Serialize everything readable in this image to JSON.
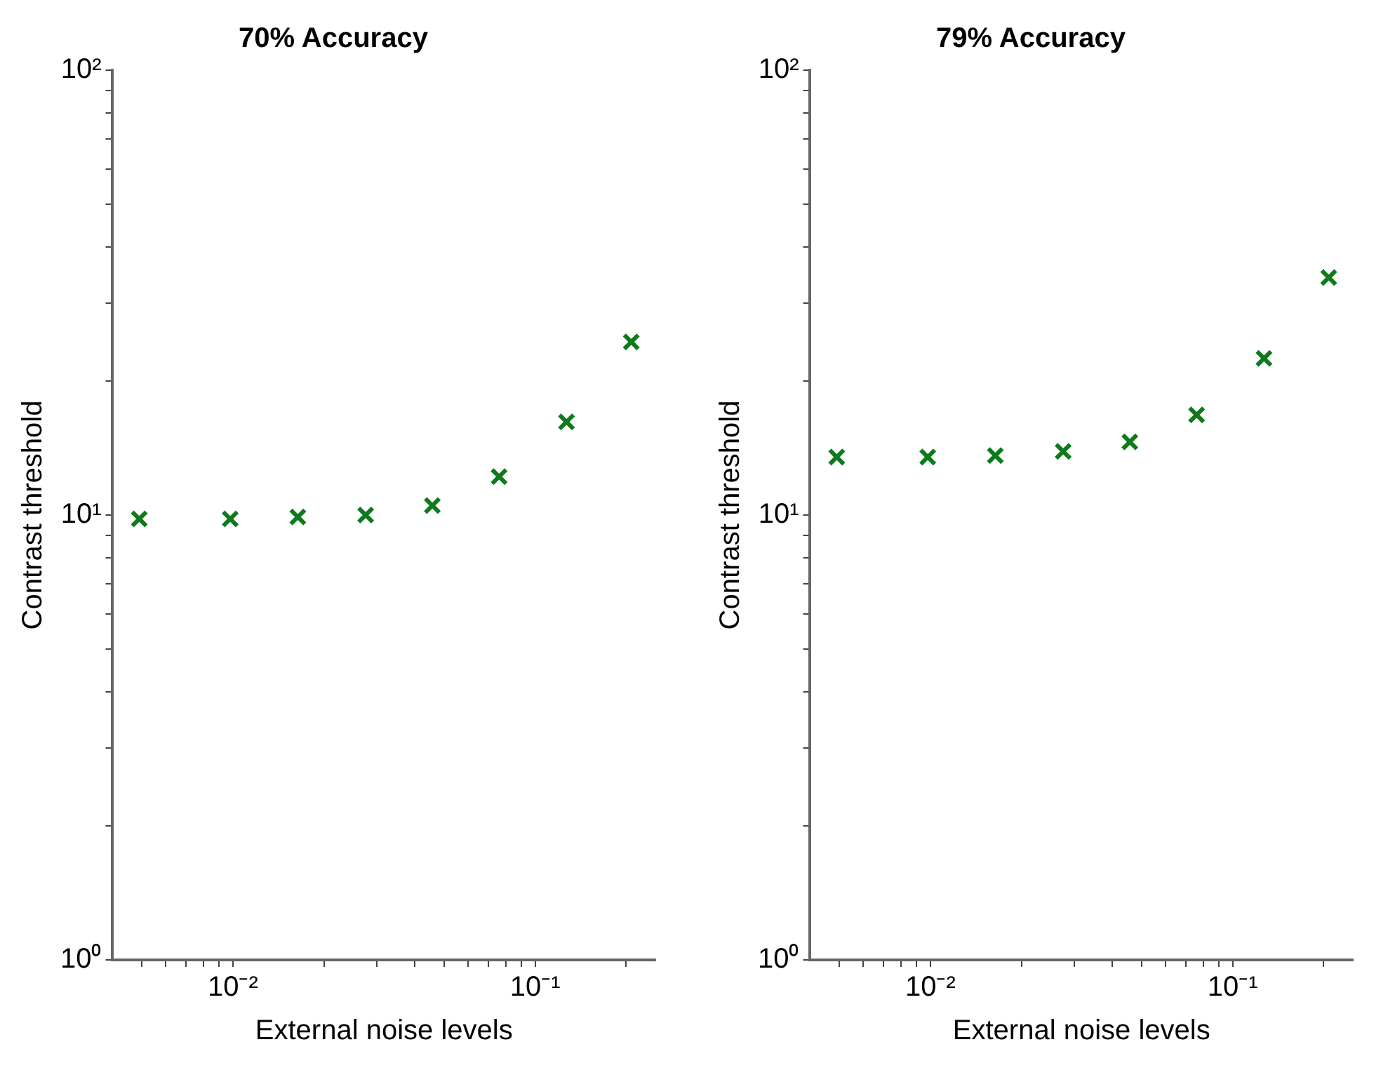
{
  "chart_data": [
    {
      "type": "scatter",
      "title": "70% Accuracy",
      "xlabel": "External noise levels",
      "ylabel": "Contrast threshold",
      "log": "xy",
      "marker": "cross",
      "x": [
        0.0049,
        0.0098,
        0.0164,
        0.0275,
        0.0457,
        0.076,
        0.127,
        0.208
      ],
      "series": [
        {
          "color": "#0f7a1c",
          "values": [
            9.8,
            9.8,
            9.9,
            10,
            10.5,
            12.2,
            16.2,
            24.5
          ]
        }
      ],
      "xlim": [
        0.004,
        0.25
      ],
      "ylim": [
        1,
        100
      ],
      "xticks": [
        {
          "value": 0.005,
          "label": null
        },
        {
          "value": 0.006,
          "label": null
        },
        {
          "value": 0.007,
          "label": null
        },
        {
          "value": 0.008,
          "label": null
        },
        {
          "value": 0.009,
          "label": null
        },
        {
          "value": 0.01,
          "label": "10⁻²"
        },
        {
          "value": 0.02,
          "label": null
        },
        {
          "value": 0.03,
          "label": null
        },
        {
          "value": 0.04,
          "label": null
        },
        {
          "value": 0.05,
          "label": null
        },
        {
          "value": 0.06,
          "label": null
        },
        {
          "value": 0.07,
          "label": null
        },
        {
          "value": 0.08,
          "label": null
        },
        {
          "value": 0.09,
          "label": null
        },
        {
          "value": 0.1,
          "label": "10⁻¹"
        },
        {
          "value": 0.2,
          "label": null
        }
      ],
      "yticks": [
        {
          "value": 1,
          "label": "10⁰"
        },
        {
          "value": 2,
          "label": null
        },
        {
          "value": 3,
          "label": null
        },
        {
          "value": 4,
          "label": null
        },
        {
          "value": 5,
          "label": null
        },
        {
          "value": 6,
          "label": null
        },
        {
          "value": 7,
          "label": null
        },
        {
          "value": 8,
          "label": null
        },
        {
          "value": 9,
          "label": null
        },
        {
          "value": 10,
          "label": "10¹"
        },
        {
          "value": 20,
          "label": null
        },
        {
          "value": 30,
          "label": null
        },
        {
          "value": 40,
          "label": null
        },
        {
          "value": 50,
          "label": null
        },
        {
          "value": 60,
          "label": null
        },
        {
          "value": 70,
          "label": null
        },
        {
          "value": 80,
          "label": null
        },
        {
          "value": 90,
          "label": null
        },
        {
          "value": 100,
          "label": "10²"
        }
      ]
    },
    {
      "type": "scatter",
      "title": "79% Accuracy",
      "xlabel": "External noise levels",
      "ylabel": "Contrast threshold",
      "log": "xy",
      "marker": "cross",
      "x": [
        0.0049,
        0.0098,
        0.0164,
        0.0275,
        0.0457,
        0.076,
        0.127,
        0.208
      ],
      "series": [
        {
          "color": "#0f7a1c",
          "values": [
            13.5,
            13.5,
            13.6,
            13.9,
            14.6,
            16.8,
            22.5,
            34.2
          ]
        }
      ],
      "xlim": [
        0.004,
        0.25
      ],
      "ylim": [
        1,
        100
      ],
      "xticks": [
        {
          "value": 0.005,
          "label": null
        },
        {
          "value": 0.006,
          "label": null
        },
        {
          "value": 0.007,
          "label": null
        },
        {
          "value": 0.008,
          "label": null
        },
        {
          "value": 0.009,
          "label": null
        },
        {
          "value": 0.01,
          "label": "10⁻²"
        },
        {
          "value": 0.02,
          "label": null
        },
        {
          "value": 0.03,
          "label": null
        },
        {
          "value": 0.04,
          "label": null
        },
        {
          "value": 0.05,
          "label": null
        },
        {
          "value": 0.06,
          "label": null
        },
        {
          "value": 0.07,
          "label": null
        },
        {
          "value": 0.08,
          "label": null
        },
        {
          "value": 0.09,
          "label": null
        },
        {
          "value": 0.1,
          "label": "10⁻¹"
        },
        {
          "value": 0.2,
          "label": null
        }
      ],
      "yticks": [
        {
          "value": 1,
          "label": "10⁰"
        },
        {
          "value": 2,
          "label": null
        },
        {
          "value": 3,
          "label": null
        },
        {
          "value": 4,
          "label": null
        },
        {
          "value": 5,
          "label": null
        },
        {
          "value": 6,
          "label": null
        },
        {
          "value": 7,
          "label": null
        },
        {
          "value": 8,
          "label": null
        },
        {
          "value": 9,
          "label": null
        },
        {
          "value": 10,
          "label": "10¹"
        },
        {
          "value": 20,
          "label": null
        },
        {
          "value": 30,
          "label": null
        },
        {
          "value": 40,
          "label": null
        },
        {
          "value": 50,
          "label": null
        },
        {
          "value": 60,
          "label": null
        },
        {
          "value": 70,
          "label": null
        },
        {
          "value": 80,
          "label": null
        },
        {
          "value": 90,
          "label": null
        },
        {
          "value": 100,
          "label": "10²"
        }
      ]
    }
  ]
}
